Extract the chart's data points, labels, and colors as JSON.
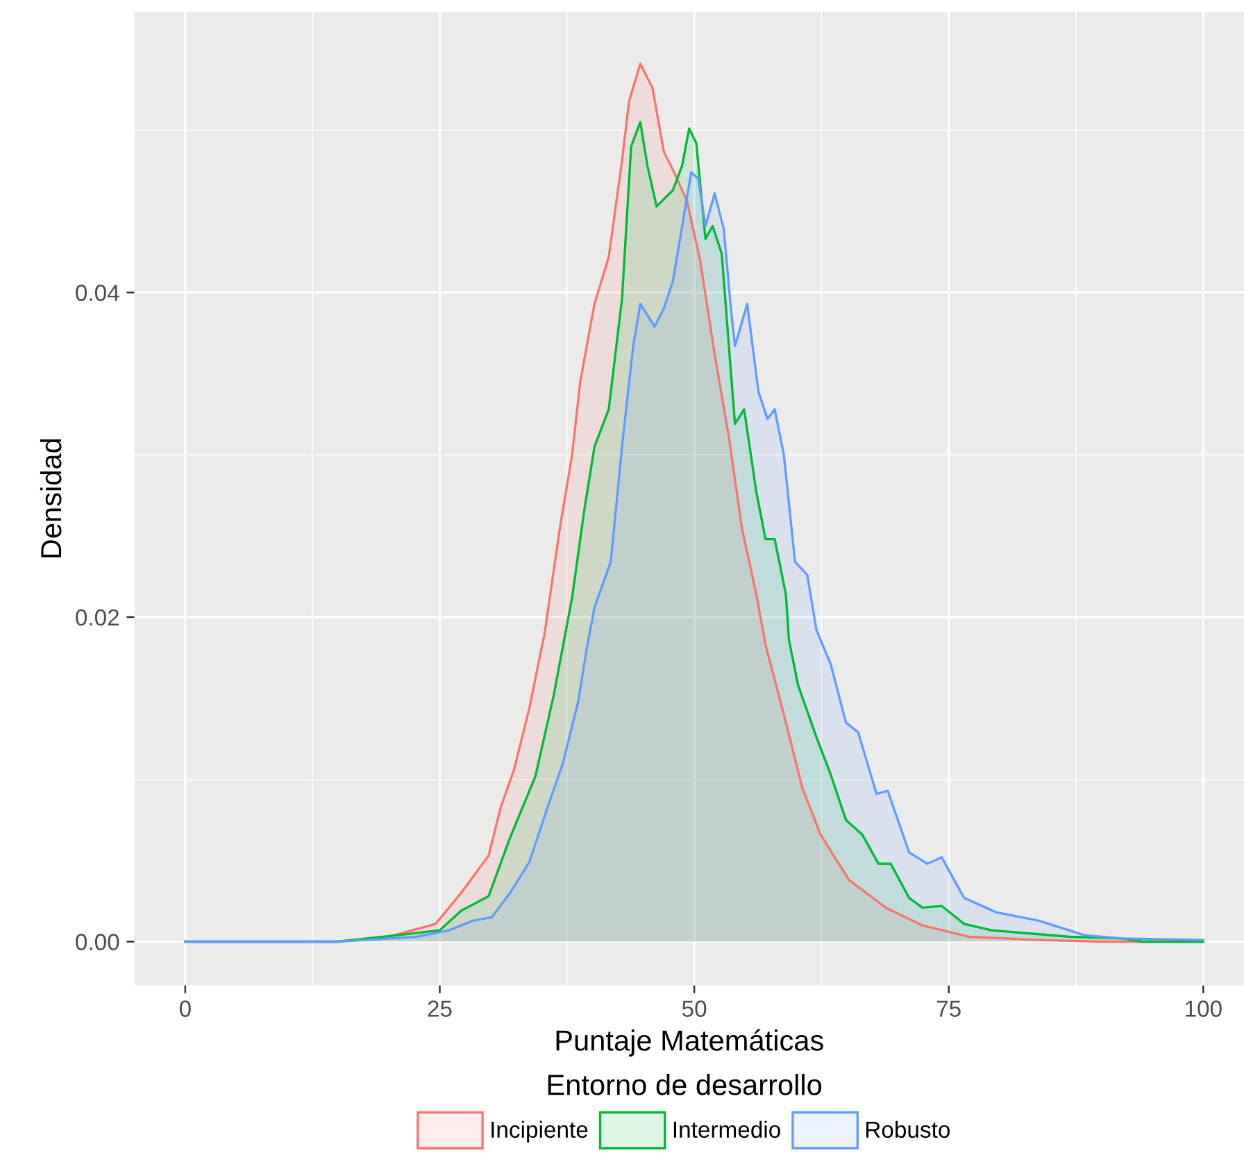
{
  "chart_data": {
    "type": "area",
    "xlabel": "Puntaje Matemáticas",
    "ylabel": "Densidad",
    "legend_title": "Entorno de desarrollo",
    "xlim": [
      -5,
      104
    ],
    "ylim": [
      -0.0027,
      0.0573
    ],
    "xticks": [
      0,
      25,
      50,
      75,
      100
    ],
    "yticks": [
      {
        "value": 0,
        "label": "0.00"
      },
      {
        "value": 0.02,
        "label": "0.02"
      },
      {
        "value": 0.04,
        "label": "0.04"
      }
    ],
    "grid": true,
    "legend": "bottom",
    "marker": "none",
    "line_style": "solid",
    "series": [
      {
        "name": "Incipiente",
        "color": "#f8766d",
        "x": [
          0,
          15,
          20,
          24.6,
          27.1,
          29.8,
          31.0,
          32.3,
          33.8,
          35.3,
          36.8,
          38.0,
          38.8,
          40.2,
          41.6,
          42.9,
          43.6,
          44.7,
          45.9,
          47.0,
          48.1,
          49.3,
          50.6,
          52.0,
          53.4,
          54.7,
          56.1,
          57.0,
          58.8,
          60.6,
          62.4,
          65.2,
          68.8,
          72.4,
          77,
          84,
          90,
          100
        ],
        "values": [
          0,
          0,
          0.0003,
          0.0011,
          0.003,
          0.0053,
          0.0083,
          0.0106,
          0.0144,
          0.019,
          0.0255,
          0.03,
          0.0345,
          0.0393,
          0.0422,
          0.0481,
          0.0518,
          0.0541,
          0.0526,
          0.0487,
          0.0473,
          0.0456,
          0.0419,
          0.0362,
          0.0311,
          0.0254,
          0.0214,
          0.0183,
          0.014,
          0.0095,
          0.0066,
          0.0038,
          0.0021,
          0.001,
          0.0003,
          0.0001,
          0,
          0
        ]
      },
      {
        "name": "Intermedio",
        "color": "#00ba38",
        "x": [
          0,
          15,
          22.2,
          25,
          27.1,
          28.6,
          29.8,
          31.9,
          34.4,
          36.2,
          38.0,
          39.2,
          40.2,
          41.6,
          42.9,
          43.8,
          44.7,
          45.4,
          46.3,
          47.9,
          48.8,
          49.5,
          50.2,
          51.1,
          51.8,
          52.7,
          53.4,
          54.0,
          54.9,
          56.1,
          57.0,
          57.9,
          59.0,
          59.3,
          60.2,
          62,
          63.4,
          64.9,
          66.5,
          68.1,
          69.3,
          71.1,
          72.4,
          74.3,
          76.5,
          79.2,
          86.9,
          92,
          94,
          100
        ],
        "values": [
          0,
          0,
          0.0005,
          0.0007,
          0.0019,
          0.0024,
          0.0028,
          0.0064,
          0.0102,
          0.0152,
          0.0212,
          0.0266,
          0.0305,
          0.0328,
          0.0396,
          0.049,
          0.0505,
          0.0478,
          0.0453,
          0.0463,
          0.0478,
          0.0501,
          0.0492,
          0.0433,
          0.0441,
          0.0424,
          0.0367,
          0.0319,
          0.0328,
          0.0277,
          0.0248,
          0.0248,
          0.0214,
          0.0186,
          0.0158,
          0.0126,
          0.0103,
          0.0075,
          0.0066,
          0.0048,
          0.0048,
          0.0027,
          0.0021,
          0.0022,
          0.0011,
          0.0007,
          0.0003,
          0.0002,
          0,
          0
        ]
      },
      {
        "name": "Robusto",
        "color": "#619cff",
        "x": [
          0,
          15,
          22.8,
          25.9,
          28.3,
          30.1,
          31.9,
          33.8,
          35.6,
          37.1,
          38.6,
          39.5,
          40.2,
          41.8,
          42.9,
          44.0,
          44.7,
          46.1,
          47.0,
          47.9,
          48.6,
          49.7,
          50.4,
          51.1,
          52.0,
          52.9,
          53.6,
          54.0,
          55.2,
          56.3,
          57.2,
          57.9,
          58.8,
          59.9,
          61.1,
          62.0,
          63.4,
          64.9,
          66.1,
          67.9,
          69.0,
          71.1,
          72.9,
          74.3,
          76.5,
          79.7,
          83.8,
          88.3,
          92,
          100
        ],
        "values": [
          0,
          0,
          0.0003,
          0.0007,
          0.0013,
          0.0015,
          0.003,
          0.0049,
          0.0083,
          0.011,
          0.0148,
          0.0183,
          0.0206,
          0.0234,
          0.0305,
          0.0367,
          0.0393,
          0.0379,
          0.039,
          0.0407,
          0.0433,
          0.0474,
          0.047,
          0.0441,
          0.0461,
          0.0439,
          0.039,
          0.0367,
          0.0393,
          0.0339,
          0.0322,
          0.0328,
          0.03,
          0.0234,
          0.0226,
          0.0192,
          0.0171,
          0.0135,
          0.0129,
          0.0091,
          0.0093,
          0.0055,
          0.0048,
          0.0052,
          0.0027,
          0.0018,
          0.0013,
          0.0004,
          0.0002,
          0.0001
        ]
      }
    ]
  }
}
